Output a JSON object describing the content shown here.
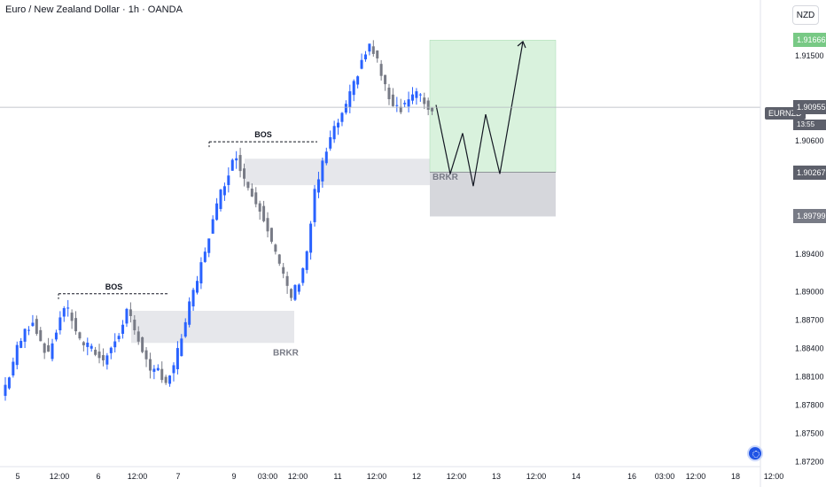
{
  "header": {
    "title": "Euro / New Zealand Dollar · 1h · OANDA",
    "currency_button": "NZD"
  },
  "price_axis": {
    "symbol_tag": "EURNZD",
    "current_price": "1.90955",
    "countdown": "13:55",
    "target_price": "1.91666",
    "entry_price": "1.90267",
    "stop_price": "1.89799",
    "labels": [
      "1.91500",
      "1.90600",
      "1.89400",
      "1.89000",
      "1.88700",
      "1.88400",
      "1.88100",
      "1.87800",
      "1.87500",
      "1.87200"
    ]
  },
  "colors": {
    "bull": "#2962ff",
    "bear": "#787b86",
    "profit_zone": "#d9f2dd",
    "loss_zone": "#d6d7dc",
    "target_tag": "#78c985",
    "entry_tag": "#5d606b",
    "stop_tag": "#787b86"
  },
  "chart_data": {
    "type": "candlestick",
    "symbol": "EURNZD",
    "timeframe": "1h",
    "broker": "OANDA",
    "x_tick_labels": [
      "5",
      "12:00",
      "6",
      "12:00",
      "7",
      "9",
      "03:00",
      "12:00",
      "11",
      "12:00",
      "12",
      "12:00",
      "13",
      "12:00",
      "14",
      "16",
      "03:00",
      "12:00",
      "18",
      "12:00"
    ],
    "ylim": [
      1.8715,
      1.9195
    ],
    "close_path": [
      1.879,
      1.8812,
      1.884,
      1.8858,
      1.887,
      1.8848,
      1.8832,
      1.886,
      1.8885,
      1.8872,
      1.8848,
      1.8842,
      1.8836,
      1.8826,
      1.8845,
      1.8852,
      1.8882,
      1.886,
      1.884,
      1.8812,
      1.8818,
      1.8805,
      1.882,
      1.8852,
      1.8885,
      1.8912,
      1.8945,
      1.8975,
      1.9005,
      1.9028,
      1.9045,
      1.902,
      1.9003,
      1.899,
      1.8968,
      1.894,
      1.8915,
      1.8895,
      1.8912,
      1.8942,
      1.9005,
      1.9035,
      1.9062,
      1.908,
      1.9095,
      1.912,
      1.9145,
      1.916,
      1.9145,
      1.9115,
      1.91,
      1.9095,
      1.9105,
      1.911,
      1.91,
      1.9092
    ],
    "annotations": [
      {
        "type": "level",
        "label": "BOS",
        "price": 1.8898
      },
      {
        "type": "level",
        "label": "BOS",
        "price": 1.9059
      },
      {
        "type": "zone",
        "label": "BRKR",
        "price_from": 1.8846,
        "price_to": 1.888
      },
      {
        "type": "zone",
        "label": "BRKR",
        "price_from": 1.9013,
        "price_to": 1.9041
      }
    ],
    "position": {
      "entry": 1.90267,
      "target": 1.91666,
      "stop": 1.89799,
      "projection": [
        1.9098,
        1.9025,
        1.9068,
        1.9012,
        1.9088,
        1.9025,
        1.9165
      ]
    },
    "current_price": 1.90955
  }
}
